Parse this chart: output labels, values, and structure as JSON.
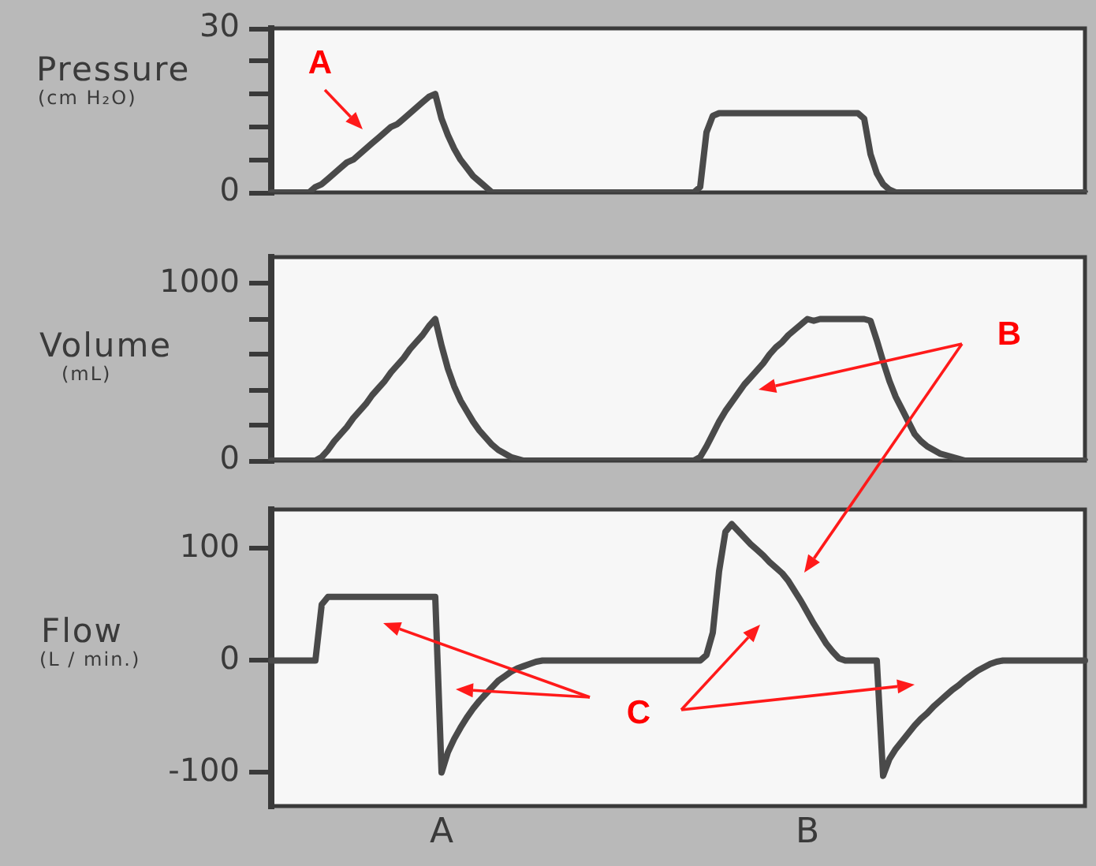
{
  "chart_data": [
    {
      "type": "line",
      "ylabel": "Pressure\n(cm H₂O)",
      "annotations": [
        "A"
      ],
      "tick_labels": "y",
      "color": "#4a4a4a",
      "ylim": [
        0,
        30
      ],
      "yticks": [
        0,
        {
          "value": 6,
          "label": null
        },
        {
          "value": 12,
          "label": null
        },
        {
          "value": 18,
          "label": null
        },
        {
          "value": 24,
          "label": null
        },
        30
      ],
      "categories": [
        null,
        null,
        null,
        null,
        null,
        null,
        null,
        null,
        null,
        null,
        null,
        null,
        null,
        null,
        null,
        null,
        null,
        null,
        null,
        null,
        null,
        null,
        null,
        null,
        null,
        null,
        null,
        null,
        null,
        null,
        null,
        null,
        null,
        null,
        null,
        null,
        null,
        null,
        null,
        null,
        null,
        null,
        null,
        null,
        null,
        null,
        null,
        null,
        null,
        null,
        null,
        null,
        null,
        null,
        null,
        null,
        null,
        null,
        null,
        null,
        null,
        null,
        null,
        null,
        null,
        null,
        null,
        null,
        null,
        null,
        null,
        null,
        null,
        null,
        null,
        null,
        null,
        null,
        null,
        null,
        null,
        null,
        null,
        null,
        null,
        null,
        null,
        null,
        null,
        null,
        null,
        null,
        null,
        null,
        null,
        null,
        null,
        null,
        null,
        null,
        null,
        null,
        null,
        null,
        null,
        null,
        null,
        null,
        null,
        null,
        null,
        null,
        null,
        null,
        null,
        null,
        null,
        null,
        null,
        null,
        null,
        null,
        null,
        null,
        null,
        null,
        null,
        null,
        null,
        null
      ],
      "values": [
        0,
        0,
        0,
        0,
        0,
        0,
        0,
        1,
        1.5,
        2.5,
        3.5,
        4.5,
        5.5,
        6,
        7,
        8,
        9,
        10,
        11,
        12,
        12.5,
        13.5,
        14.5,
        15.5,
        16.5,
        17.5,
        18,
        13.5,
        10.5,
        8,
        6,
        4.5,
        3,
        2,
        1,
        0,
        0,
        0,
        0,
        0,
        0,
        0,
        0,
        0,
        0,
        0,
        0,
        0,
        0,
        0,
        0,
        0,
        0,
        0,
        0,
        0,
        0,
        0,
        0,
        0,
        0,
        0,
        0,
        0,
        0,
        0,
        0,
        0,
        1,
        11,
        14,
        14.5,
        14.5,
        14.5,
        14.5,
        14.5,
        14.5,
        14.5,
        14.5,
        14.5,
        14.5,
        14.5,
        14.5,
        14.5,
        14.5,
        14.5,
        14.5,
        14.5,
        14.5,
        14.5,
        14.5,
        14.5,
        14.5,
        14.5,
        13.5,
        7,
        3.5,
        1.5,
        0.5,
        0,
        0,
        0,
        0,
        0,
        0,
        0,
        0,
        0,
        0,
        0,
        0,
        0,
        0,
        0,
        0,
        0,
        0,
        0,
        0,
        0,
        0,
        0,
        0,
        0,
        0,
        0,
        0,
        0,
        0,
        0
      ]
    },
    {
      "type": "line",
      "ylabel": "Volume\n(mL)",
      "annotations": [
        "B"
      ],
      "tick_labels": "y",
      "color": "#4a4a4a",
      "ylim": [
        0,
        1150
      ],
      "yticks": [
        0,
        {
          "value": 200,
          "label": null
        },
        {
          "value": 400,
          "label": null
        },
        {
          "value": 600,
          "label": null
        },
        {
          "value": 800,
          "label": null
        },
        1000
      ],
      "categories": [
        null,
        null,
        null,
        null,
        null,
        null,
        null,
        null,
        null,
        null,
        null,
        null,
        null,
        null,
        null,
        null,
        null,
        null,
        null,
        null,
        null,
        null,
        null,
        null,
        null,
        null,
        null,
        null,
        null,
        null,
        null,
        null,
        null,
        null,
        null,
        null,
        null,
        null,
        null,
        null,
        null,
        null,
        null,
        null,
        null,
        null,
        null,
        null,
        null,
        null,
        null,
        null,
        null,
        null,
        null,
        null,
        null,
        null,
        null,
        null,
        null,
        null,
        null,
        null,
        null,
        null,
        null,
        null,
        null,
        null,
        null,
        null,
        null,
        null,
        null,
        null,
        null,
        null,
        null,
        null,
        null,
        null,
        null,
        null,
        null,
        null,
        null,
        null,
        null,
        null,
        null,
        null,
        null,
        null,
        null,
        null,
        null,
        null,
        null,
        null,
        null,
        null,
        null,
        null,
        null,
        null,
        null,
        null,
        null,
        null,
        null,
        null,
        null,
        null,
        null,
        null,
        null,
        null,
        null,
        null,
        null,
        null,
        null,
        null,
        null,
        null,
        null,
        null,
        null,
        null
      ],
      "values": [
        0,
        0,
        0,
        0,
        0,
        0,
        0,
        0,
        20,
        60,
        110,
        150,
        190,
        240,
        280,
        320,
        370,
        410,
        450,
        500,
        540,
        580,
        630,
        670,
        710,
        760,
        800,
        650,
        520,
        420,
        340,
        280,
        220,
        170,
        130,
        90,
        60,
        40,
        20,
        10,
        0,
        0,
        0,
        0,
        0,
        0,
        0,
        0,
        0,
        0,
        0,
        0,
        0,
        0,
        0,
        0,
        0,
        0,
        0,
        0,
        0,
        0,
        0,
        0,
        0,
        0,
        0,
        0,
        20,
        80,
        150,
        220,
        280,
        330,
        380,
        430,
        470,
        510,
        550,
        600,
        640,
        670,
        710,
        740,
        770,
        800,
        790,
        800,
        800,
        800,
        800,
        800,
        800,
        800,
        800,
        790,
        680,
        560,
        450,
        360,
        290,
        220,
        150,
        110,
        80,
        60,
        40,
        30,
        20,
        10,
        0,
        0,
        0,
        0,
        0,
        0,
        0,
        0,
        0,
        0,
        0,
        0,
        0,
        0,
        0,
        0,
        0,
        0,
        0,
        0
      ]
    },
    {
      "type": "line",
      "ylabel": "Flow\n(L / min.)",
      "annotations": [
        "C"
      ],
      "color": "#4a4a4a",
      "ylim": [
        -130,
        135
      ],
      "yticks": [
        -100,
        0,
        100
      ],
      "categories": [
        null,
        null,
        null,
        null,
        null,
        null,
        null,
        null,
        null,
        null,
        null,
        null,
        null,
        null,
        null,
        null,
        null,
        null,
        null,
        null,
        null,
        null,
        null,
        null,
        null,
        null,
        null,
        "A",
        null,
        null,
        null,
        null,
        null,
        null,
        null,
        null,
        null,
        null,
        null,
        null,
        null,
        null,
        null,
        null,
        null,
        null,
        null,
        null,
        null,
        null,
        null,
        null,
        null,
        null,
        null,
        null,
        null,
        null,
        null,
        null,
        null,
        null,
        null,
        null,
        null,
        null,
        null,
        null,
        null,
        null,
        null,
        null,
        null,
        null,
        null,
        null,
        null,
        null,
        null,
        null,
        null,
        null,
        null,
        null,
        null,
        "B",
        null,
        null,
        null,
        null,
        null,
        null,
        null,
        null,
        null,
        null,
        null,
        null,
        null,
        null,
        null,
        null,
        null,
        null,
        null,
        null,
        null,
        null,
        null,
        null,
        null,
        null,
        null,
        null,
        null,
        null,
        null,
        null,
        null,
        null,
        null,
        null,
        null,
        null,
        null,
        null,
        null,
        null,
        null,
        null
      ],
      "values": [
        0,
        0,
        0,
        0,
        0,
        0,
        0,
        0,
        50,
        57,
        57,
        57,
        57,
        57,
        57,
        57,
        57,
        57,
        57,
        57,
        57,
        57,
        57,
        57,
        57,
        57,
        57,
        -100,
        -82,
        -70,
        -60,
        -51,
        -43,
        -36,
        -30,
        -24,
        -18,
        -14,
        -10,
        -7,
        -5,
        -3,
        -1,
        0,
        0,
        0,
        0,
        0,
        0,
        0,
        0,
        0,
        0,
        0,
        0,
        0,
        0,
        0,
        0,
        0,
        0,
        0,
        0,
        0,
        0,
        0,
        0,
        0,
        0,
        5,
        25,
        80,
        115,
        122,
        116,
        110,
        104,
        99,
        94,
        88,
        83,
        78,
        71,
        62,
        53,
        43,
        33,
        24,
        15,
        8,
        2,
        0,
        0,
        0,
        0,
        0,
        0,
        -103,
        -88,
        -79,
        -72,
        -65,
        -58,
        -52,
        -47,
        -41,
        -36,
        -31,
        -26,
        -22,
        -17,
        -13,
        -9,
        -6,
        -3,
        -1,
        0,
        0,
        0,
        0,
        0,
        0,
        0,
        0,
        0,
        0,
        0,
        0,
        0,
        0
      ]
    }
  ]
}
